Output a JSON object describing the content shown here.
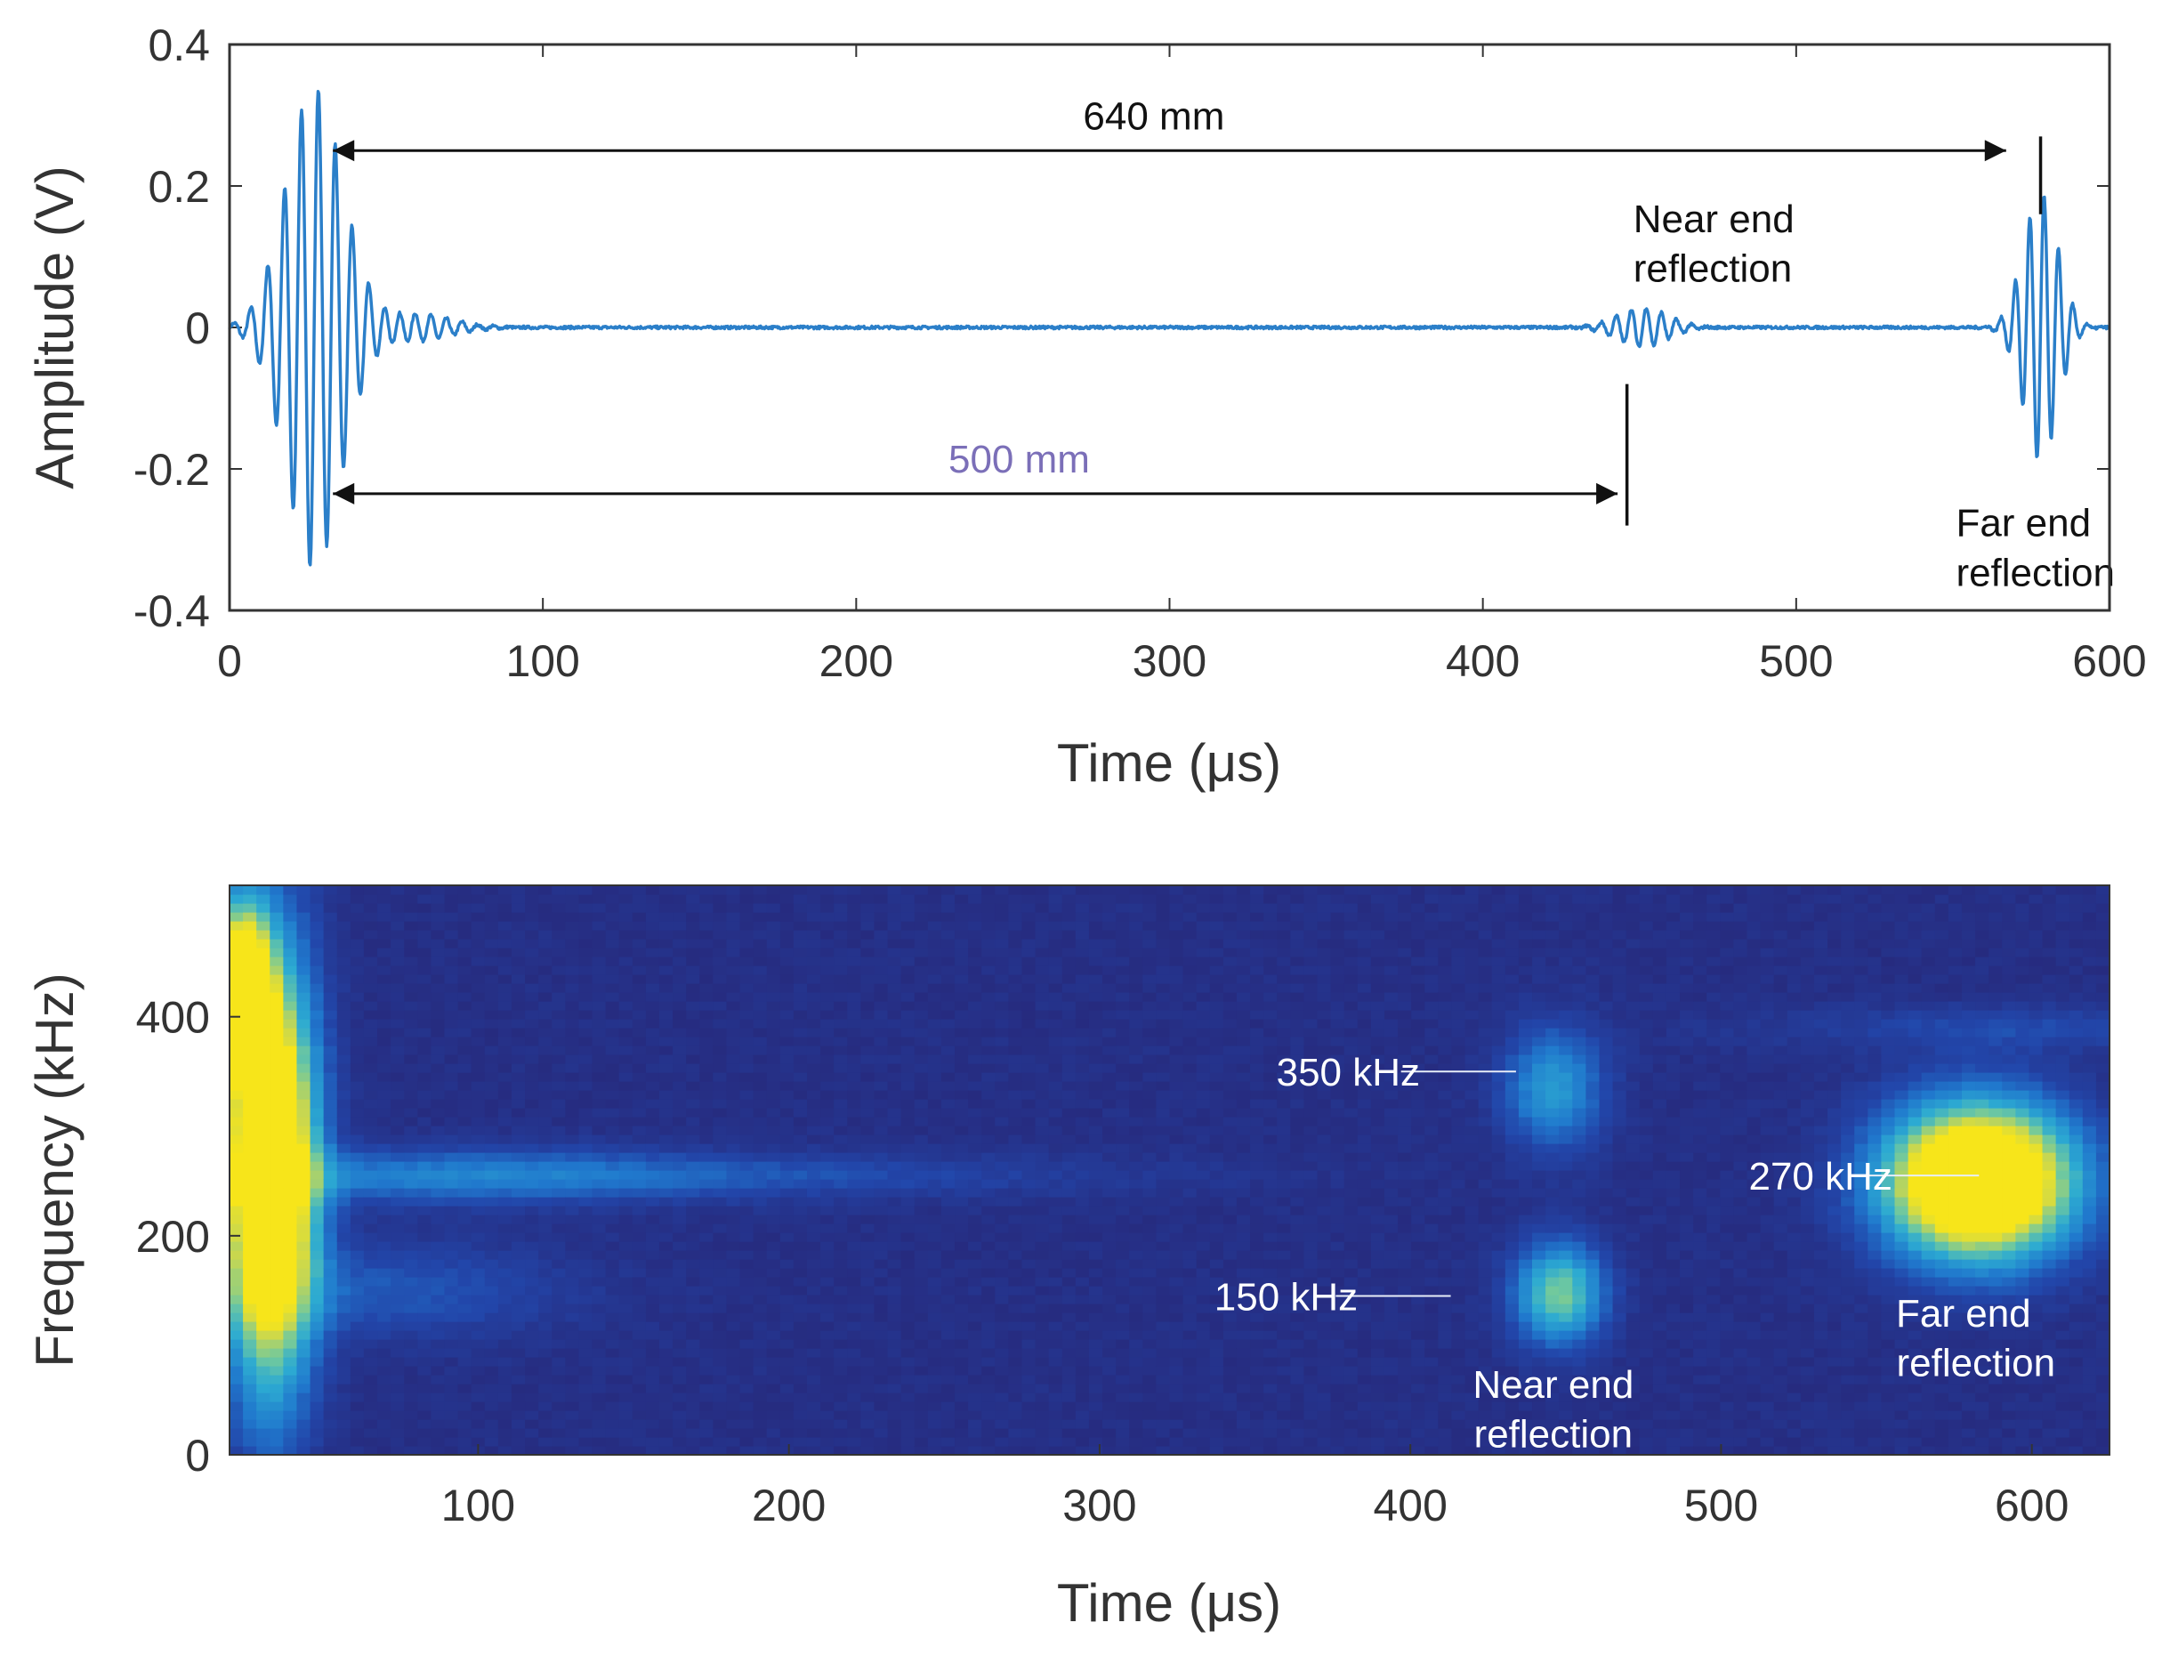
{
  "colors": {
    "signal": "#2b7fc9",
    "axis": "#333333",
    "arrow": "#111111",
    "purple_annotation": "#7b6fb8",
    "white_annotation": "#ffffff",
    "parula_low": "#27287a",
    "parula_mid": "#2c9fd2",
    "parula_high": "#f7e51a"
  },
  "chart_data": [
    {
      "type": "line",
      "ylabel": "Amplitude (V)",
      "xlabel": "Time (μs)",
      "xlim": [
        0,
        600
      ],
      "ylim": [
        -0.4,
        0.4
      ],
      "xticks": [
        0,
        100,
        200,
        300,
        400,
        500,
        600
      ],
      "xtick_labels": [
        "0",
        "100",
        "200",
        "300",
        "400",
        "500",
        "600"
      ],
      "yticks": [
        0.4,
        0.2,
        0,
        -0.2,
        -0.4
      ],
      "ytick_labels": [
        "0.4",
        "0.2",
        "0",
        "-0.2",
        "-0.4"
      ],
      "series": [
        {
          "name": "signal",
          "packets": [
            {
              "t0": 27,
              "amp": 0.34,
              "sigma": 9,
              "period": 5.4
            },
            {
              "t0": 58,
              "amp": 0.02,
              "sigma": 12,
              "period": 5.0
            },
            {
              "t0": 451,
              "amp": 0.028,
              "sigma": 8,
              "period": 4.8
            },
            {
              "t0": 578,
              "amp": 0.19,
              "sigma": 5.5,
              "period": 4.6
            }
          ],
          "noise": 0.004
        }
      ],
      "annotations": [
        {
          "text": "640 mm",
          "x_from": 33,
          "x_to": 567,
          "y": 0.25,
          "label_x": 295,
          "label_y": 0.3,
          "color": "arrow"
        },
        {
          "text": "500 mm",
          "x_from": 33,
          "x_to": 443,
          "y": -0.235,
          "label_x": 252,
          "label_y": -0.185,
          "color": "purple_annotation"
        },
        {
          "text": "Near end",
          "x": 448,
          "y": 0.155,
          "color": "arrow"
        },
        {
          "text": "reflection",
          "x": 448,
          "y": 0.085,
          "color": "arrow"
        },
        {
          "text": "Far end",
          "x": 551,
          "y": -0.275,
          "color": "arrow"
        },
        {
          "text": "reflection",
          "x": 551,
          "y": -0.345,
          "color": "arrow"
        }
      ],
      "markers": [
        {
          "x": 578,
          "y_from": 0.27,
          "y_to": 0.16
        },
        {
          "x": 446,
          "y_from": -0.08,
          "y_to": -0.28
        }
      ]
    },
    {
      "type": "heatmap",
      "ylabel": "Frequency (kHz)",
      "xlabel": "Time (μs)",
      "xlim": [
        20,
        625
      ],
      "ylim": [
        0,
        520
      ],
      "xticks": [
        100,
        200,
        300,
        400,
        500,
        600
      ],
      "xtick_labels": [
        "100",
        "200",
        "300",
        "400",
        "500",
        "600"
      ],
      "yticks": [
        0,
        200,
        400
      ],
      "ytick_labels": [
        "0",
        "200",
        "400"
      ],
      "blobs": [
        {
          "t": 33,
          "f": 260,
          "st": 10,
          "sf": 130,
          "amp": 1.6
        },
        {
          "t": 24,
          "f": 430,
          "st": 6,
          "sf": 50,
          "amp": 1.2
        },
        {
          "t": 90,
          "f": 255,
          "st": 60,
          "sf": 18,
          "amp": 0.28
        },
        {
          "t": 190,
          "f": 255,
          "st": 90,
          "sf": 14,
          "amp": 0.14
        },
        {
          "t": 70,
          "f": 150,
          "st": 40,
          "sf": 30,
          "amp": 0.2
        },
        {
          "t": 446,
          "f": 335,
          "st": 11,
          "sf": 38,
          "amp": 0.45
        },
        {
          "t": 448,
          "f": 148,
          "st": 10,
          "sf": 32,
          "amp": 0.7
        },
        {
          "t": 583,
          "f": 250,
          "st": 21,
          "sf": 48,
          "amp": 1.6
        },
        {
          "t": 595,
          "f": 390,
          "st": 55,
          "sf": 14,
          "amp": 0.14
        }
      ],
      "annotations": [
        {
          "text": "350 kHz",
          "x": 380,
          "y": 350,
          "line_from": 397,
          "line_to": 434,
          "color": "white_annotation"
        },
        {
          "text": "150 kHz",
          "x": 360,
          "y": 145,
          "line_from": 376,
          "line_to": 413,
          "color": "white_annotation"
        },
        {
          "text": "270 kHz",
          "x": 532,
          "y": 255,
          "line_from": 543,
          "line_to": 583,
          "color": "white_annotation"
        },
        {
          "text": "Near end",
          "x": 446,
          "y": 65,
          "color": "white_annotation"
        },
        {
          "text": "reflection",
          "x": 446,
          "y": 20,
          "color": "white_annotation"
        },
        {
          "text": "Far end",
          "x": 578,
          "y": 130,
          "color": "white_annotation"
        },
        {
          "text": "reflection",
          "x": 582,
          "y": 85,
          "color": "white_annotation"
        }
      ]
    }
  ]
}
